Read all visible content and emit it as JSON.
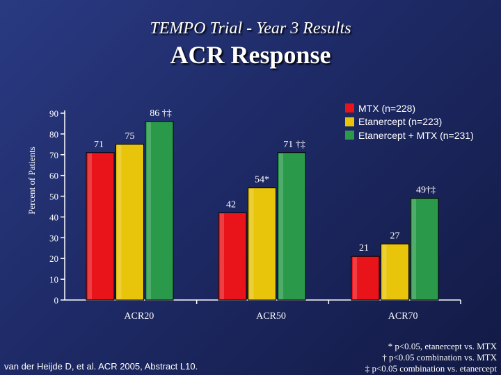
{
  "slide": {
    "subtitle": "TEMPO Trial - Year 3 Results",
    "title": "ACR Response",
    "source": "van der Heijde D, et al. ACR 2005, Abstract L10.",
    "footnotes": [
      "* p<0.05, etanercept  vs. MTX",
      "† p<0.05 combination vs. MTX",
      "‡ p<0.05 combination vs. etanercept"
    ]
  },
  "colors": {
    "mtx": "#e8141a",
    "etanercept": "#e8c40a",
    "combination": "#2a9a4a",
    "axis": "#ffffff"
  },
  "chart_data": {
    "type": "bar",
    "categories": [
      "ACR20",
      "ACR50",
      "ACR70"
    ],
    "ylabel": "Percent of Patients",
    "ylim": [
      0,
      90
    ],
    "yticks": [
      0,
      10,
      20,
      30,
      40,
      50,
      60,
      70,
      80,
      90
    ],
    "legend_position": "top-right",
    "series": [
      {
        "name": "MTX (n=228)",
        "color_key": "mtx",
        "values": [
          71,
          42,
          21
        ],
        "labels": [
          "71",
          "42",
          "21"
        ]
      },
      {
        "name": "Etanercept (n=223)",
        "color_key": "etanercept",
        "values": [
          75,
          54,
          27
        ],
        "labels": [
          "75",
          "54*",
          "27"
        ]
      },
      {
        "name": "Etanercept + MTX (n=231)",
        "color_key": "combination",
        "values": [
          86,
          71,
          49
        ],
        "labels": [
          "86 †‡",
          "71 †‡",
          "49†‡"
        ]
      }
    ]
  }
}
